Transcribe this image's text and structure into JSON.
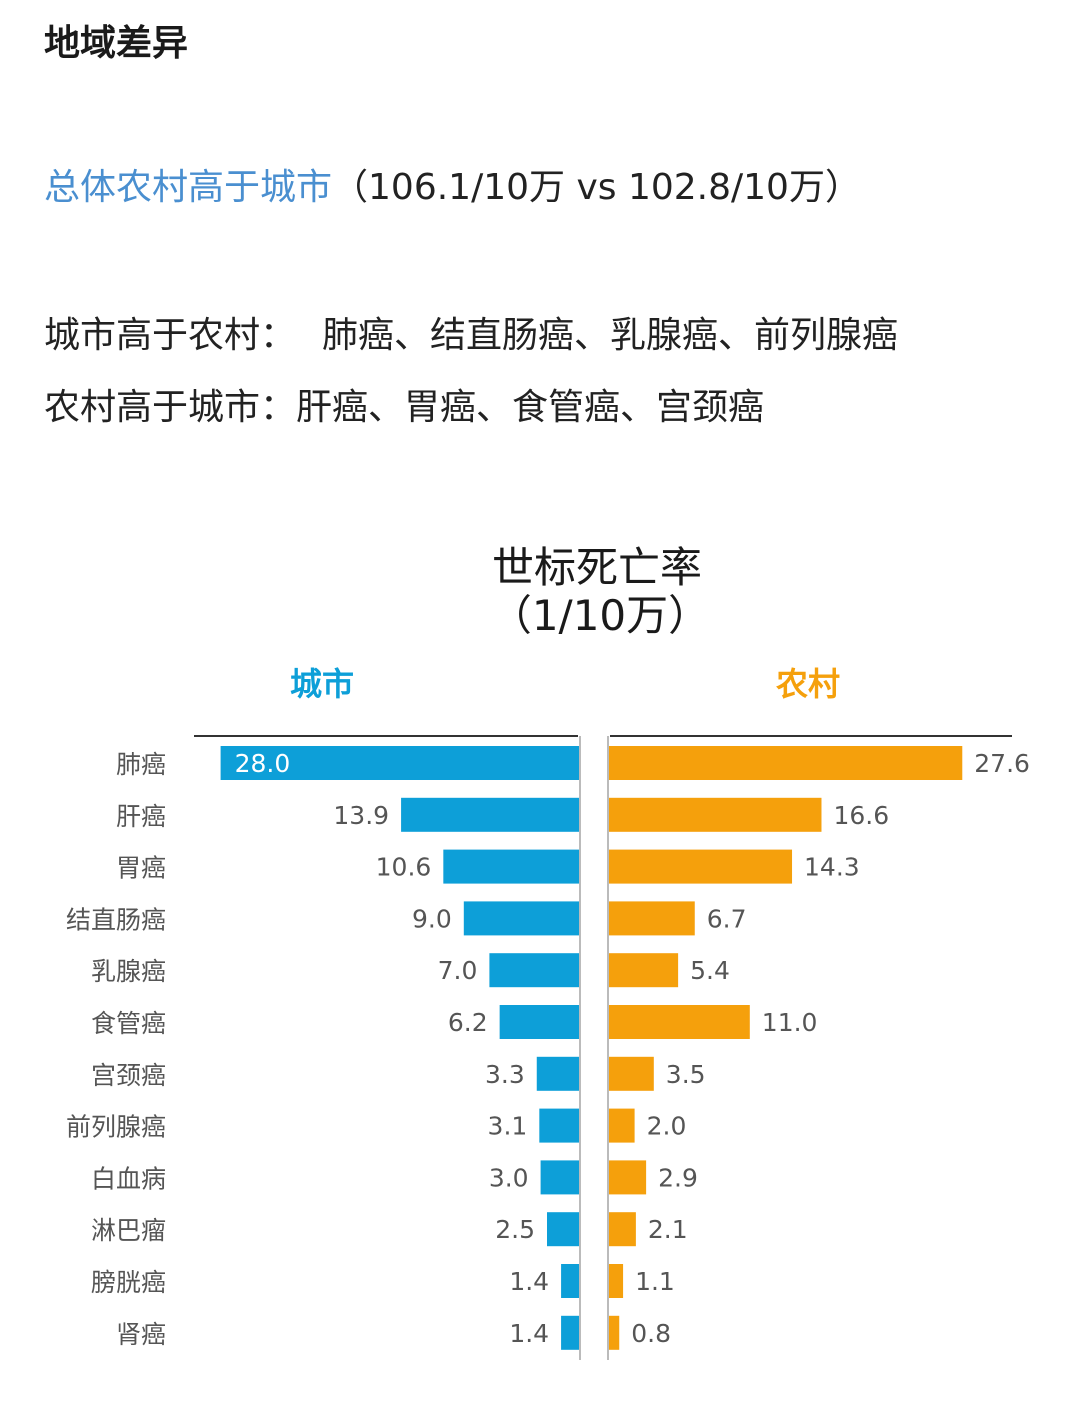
{
  "heading": "地域差异",
  "summary": {
    "highlight": "总体农村高于城市",
    "rest": "（106.1/10万 vs 102.8/10万）"
  },
  "urban_higher": {
    "label": "城市高于农村：",
    "items": "肺癌、结直肠癌、乳腺癌、前列腺癌"
  },
  "rural_higher": {
    "label": "农村高于城市：",
    "items": "肝癌、胃癌、食管癌、宫颈癌"
  },
  "colors": {
    "urban": "#0d9fd8",
    "rural": "#f5a00c",
    "highlight": "#4a8fd0"
  },
  "chart_data": {
    "type": "bar",
    "orientation": "horizontal-butterfly",
    "title": "世标死亡率",
    "subtitle": "（1/10万）",
    "categories": [
      "肺癌",
      "肝癌",
      "胃癌",
      "结直肠癌",
      "乳腺癌",
      "食管癌",
      "宫颈癌",
      "前列腺癌",
      "白血病",
      "淋巴瘤",
      "膀胱癌",
      "肾癌"
    ],
    "series": [
      {
        "name": "城市",
        "values": [
          28.0,
          13.9,
          10.6,
          9.0,
          7.0,
          6.2,
          3.3,
          3.1,
          3.0,
          2.5,
          1.4,
          1.4
        ]
      },
      {
        "name": "农村",
        "values": [
          27.6,
          16.6,
          14.3,
          6.7,
          5.4,
          11.0,
          3.5,
          2.0,
          2.9,
          2.1,
          1.1,
          0.8
        ]
      }
    ],
    "xlim": [
      0,
      28
    ]
  }
}
